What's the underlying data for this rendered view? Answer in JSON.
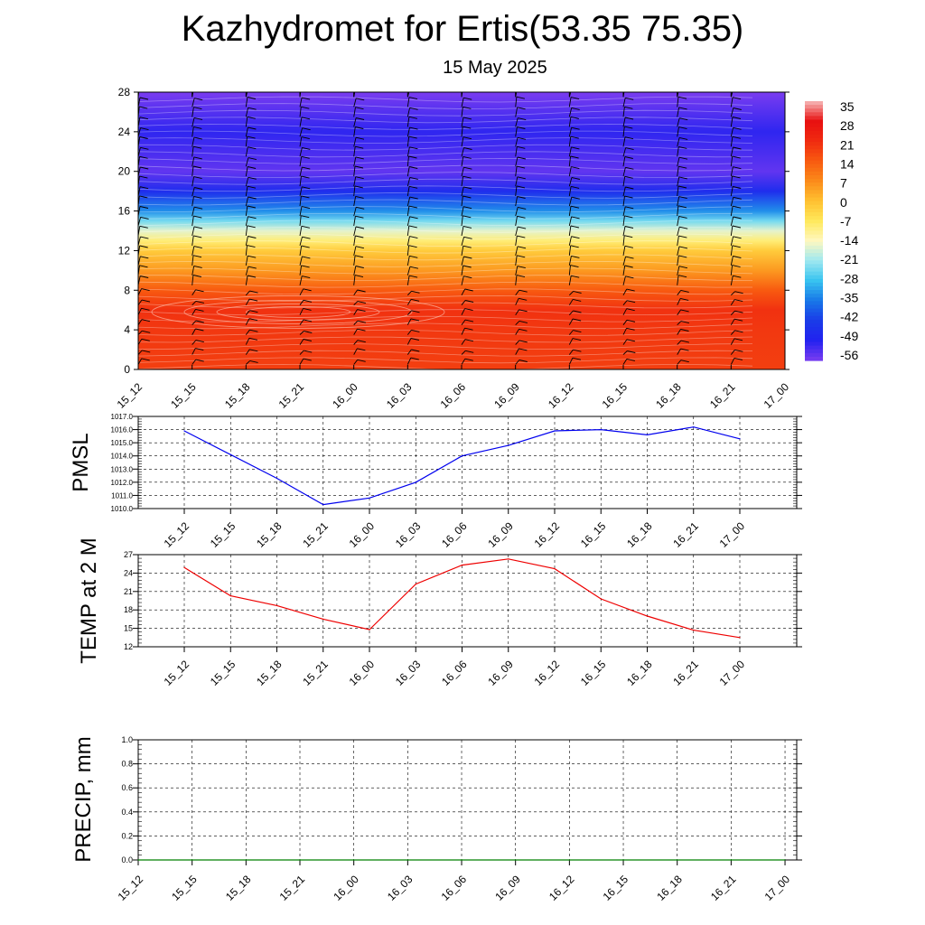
{
  "title": "Kazhydromet for Ertis(53.35 75.35)",
  "subtitle": "15 May 2025",
  "time_labels": [
    "15_12",
    "15_15",
    "15_18",
    "15_21",
    "16_00",
    "16_03",
    "16_06",
    "16_09",
    "16_12",
    "16_15",
    "16_18",
    "16_21",
    "17_00"
  ],
  "chart_data": [
    {
      "type": "heatmap",
      "title": "",
      "ylabel": "",
      "ylim": [
        0,
        28
      ],
      "yticks": [
        0,
        4,
        8,
        12,
        16,
        20,
        24,
        28
      ],
      "x": [
        "15_12",
        "15_15",
        "15_18",
        "15_21",
        "16_00",
        "16_03",
        "16_06",
        "16_09",
        "16_12",
        "16_15",
        "16_18",
        "16_21",
        "17_00"
      ],
      "colorbar_labels": [
        "35",
        "28",
        "21",
        "14",
        "7",
        "0",
        "-7",
        "-14",
        "-21",
        "-28",
        "-35",
        "-42",
        "-49",
        "-56"
      ],
      "colorbar_colors": [
        "#f6b8b8",
        "#e81010",
        "#f02a10",
        "#f85a10",
        "#fb8a1a",
        "#ffc030",
        "#ffe85a",
        "#fff8c0",
        "#9fe8f0",
        "#38c4f0",
        "#1878e8",
        "#1a3ce8",
        "#2222f0",
        "#7a3cf0"
      ],
      "profile_by_height": [
        {
          "y": 0,
          "value": 18
        },
        {
          "y": 4,
          "value": 19
        },
        {
          "y": 6,
          "value": 20
        },
        {
          "y": 8,
          "value": 14
        },
        {
          "y": 10,
          "value": 5
        },
        {
          "y": 12,
          "value": -2
        },
        {
          "y": 13,
          "value": -9
        },
        {
          "y": 14,
          "value": -16
        },
        {
          "y": 15,
          "value": -24
        },
        {
          "y": 16,
          "value": -33
        },
        {
          "y": 18,
          "value": -46
        },
        {
          "y": 20,
          "value": -54
        },
        {
          "y": 22,
          "value": -52
        },
        {
          "y": 24,
          "value": -50
        },
        {
          "y": 26,
          "value": -53
        },
        {
          "y": 28,
          "value": -56
        }
      ],
      "wind_barbs": true
    },
    {
      "type": "line",
      "ylabel": "PMSL",
      "ylim": [
        1010.0,
        1017.0
      ],
      "yticks": [
        "1010.0",
        "1011.0",
        "1012.0",
        "1013.0",
        "1014.0",
        "1015.0",
        "1016.0",
        "1017.0"
      ],
      "grid": true,
      "x": [
        "15_12",
        "15_15",
        "15_18",
        "15_21",
        "16_00",
        "16_03",
        "16_06",
        "16_09",
        "16_12",
        "16_15",
        "16_18",
        "16_21",
        "17_00"
      ],
      "series": [
        {
          "values": [
            1015.9,
            1014.1,
            1012.3,
            1010.3,
            1010.8,
            1012.0,
            1014.0,
            1014.8,
            1015.9,
            1016.0,
            1015.6,
            1016.2,
            1015.3
          ],
          "color": "#0000ee"
        }
      ]
    },
    {
      "type": "line",
      "ylabel": "TEMP at 2 M",
      "ylim": [
        12,
        27
      ],
      "yticks": [
        "12",
        "15",
        "18",
        "21",
        "24",
        "27"
      ],
      "grid": true,
      "x": [
        "15_12",
        "15_15",
        "15_18",
        "15_21",
        "16_00",
        "16_03",
        "16_06",
        "16_09",
        "16_12",
        "16_15",
        "16_18",
        "16_21",
        "17_00"
      ],
      "series": [
        {
          "values": [
            24.9,
            20.3,
            18.7,
            16.5,
            14.8,
            22.2,
            25.3,
            26.3,
            24.7,
            19.8,
            17.0,
            14.7,
            13.5
          ],
          "color": "#ee0000"
        }
      ]
    },
    {
      "type": "line",
      "ylabel": "PRECIP, mm",
      "ylim": [
        0.0,
        1.0
      ],
      "yticks": [
        "0.0",
        "0.2",
        "0.4",
        "0.6",
        "0.8",
        "1.0"
      ],
      "grid": true,
      "x": [
        "15_12",
        "15_15",
        "15_18",
        "15_21",
        "16_00",
        "16_03",
        "16_06",
        "16_09",
        "16_12",
        "16_15",
        "16_18",
        "16_21",
        "17_00"
      ],
      "series": [
        {
          "values": [
            0,
            0,
            0,
            0,
            0,
            0,
            0,
            0,
            0,
            0,
            0,
            0,
            0
          ],
          "color": "#008000"
        }
      ]
    }
  ]
}
